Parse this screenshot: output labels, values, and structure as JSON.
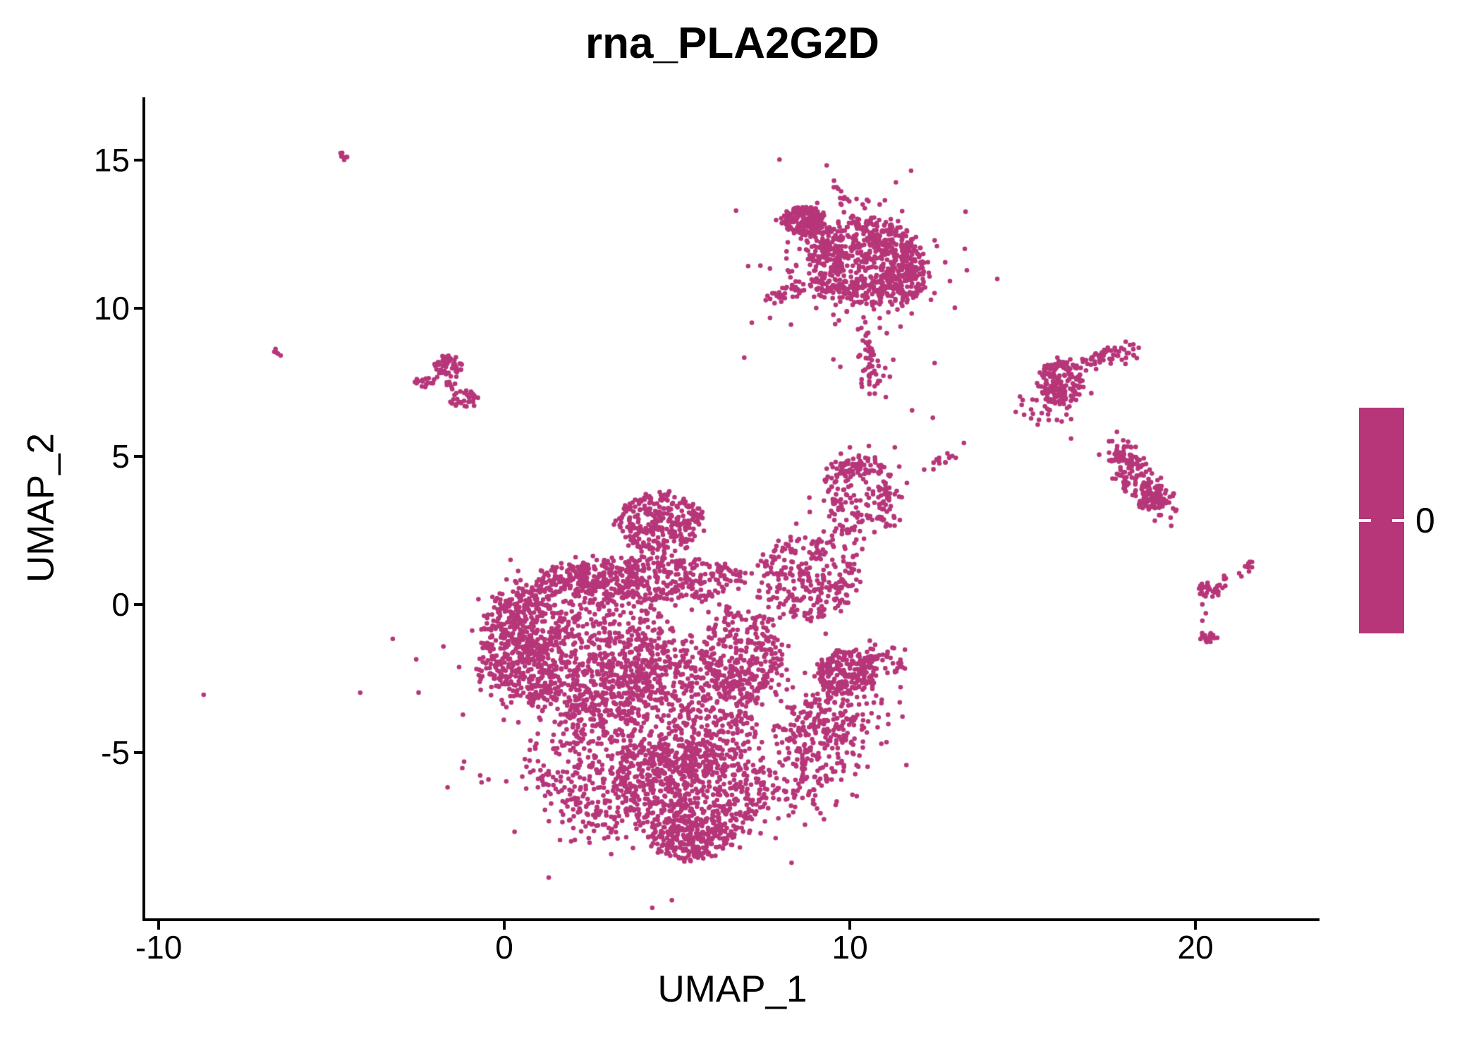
{
  "title": "rna_PLA2G2D",
  "legend": {
    "tick_label": "0",
    "bar_color": "#B63679"
  },
  "chart_data": {
    "type": "scatter",
    "title": "rna_PLA2G2D",
    "xlabel": "UMAP_1",
    "ylabel": "UMAP_2",
    "xlim": [
      -10.39,
      23.59
    ],
    "ylim": [
      -10.6,
      17.12
    ],
    "x_ticks": {
      "values": [
        -10,
        0,
        10,
        20
      ],
      "labels": [
        "-10",
        "0",
        "10",
        "20"
      ]
    },
    "y_ticks": {
      "values": [
        15,
        10,
        5,
        0,
        -5
      ],
      "labels": [
        "15",
        "10",
        "5",
        "0",
        "-5"
      ]
    },
    "grid": false,
    "legend_position": "right",
    "point_color": "#B63679",
    "point_radius_px": 3.3,
    "colorbar": {
      "single_tick_value": 0,
      "uniform_color": "#B63679"
    },
    "seed": 1234567,
    "clusters": [
      {
        "name": "main-upper-left",
        "shape": "ellipse",
        "cx": 2.2,
        "cy": -1.2,
        "rx": 2.6,
        "ry": 2.6,
        "n": 700
      },
      {
        "name": "main-center",
        "shape": "ellipse",
        "cx": 4.5,
        "cy": -3.8,
        "rx": 2.8,
        "ry": 2.6,
        "n": 800
      },
      {
        "name": "main-bottom-bowl",
        "shape": "ellipse",
        "cx": 5.4,
        "cy": -6.3,
        "rx": 2.3,
        "ry": 1.7,
        "n": 600
      },
      {
        "name": "main-top-band",
        "shape": "ellipse",
        "cx": 4.2,
        "cy": 0.85,
        "rx": 2.8,
        "ry": 0.75,
        "n": 450
      },
      {
        "name": "main-top-knob",
        "shape": "ellipse",
        "cx": 4.5,
        "cy": 2.75,
        "rx": 1.25,
        "ry": 1.0,
        "n": 280
      },
      {
        "name": "main-left-lobe",
        "shape": "ellipse",
        "cx": 0.6,
        "cy": -1.6,
        "rx": 1.25,
        "ry": 1.9,
        "n": 300
      },
      {
        "name": "main-right-mid",
        "shape": "ellipse",
        "cx": 6.9,
        "cy": -1.8,
        "rx": 1.2,
        "ry": 1.6,
        "n": 280
      },
      {
        "name": "main-right-shoulder",
        "shape": "ellipse",
        "cx": 8.8,
        "cy": 0.9,
        "rx": 1.4,
        "ry": 1.4,
        "n": 260
      },
      {
        "name": "main-right-edge-band",
        "shape": "stroke",
        "x1": 8.4,
        "y1": -6.7,
        "x2": 10.3,
        "y2": -3.3,
        "w": 0.55,
        "n": 200
      },
      {
        "name": "main-bottom-tip",
        "shape": "ellipse",
        "cx": 5.4,
        "cy": -7.9,
        "rx": 1.2,
        "ry": 0.75,
        "n": 220
      },
      {
        "name": "main-fill",
        "shape": "gauss",
        "cx": 4.0,
        "cy": -3.5,
        "sx": 2.6,
        "sy": 2.3,
        "n": 400
      },
      {
        "name": "main-left-edge-band",
        "shape": "stroke",
        "x1": -0.5,
        "y1": -2.6,
        "x2": 0.9,
        "y2": 0.6,
        "w": 0.45,
        "n": 120
      },
      {
        "name": "main-bottom-left-edge",
        "shape": "stroke",
        "x1": 1.1,
        "y1": -5.3,
        "x2": 3.0,
        "y2": -7.6,
        "w": 0.5,
        "n": 150
      },
      {
        "name": "satellite-body",
        "shape": "ellipse",
        "cx": 9.9,
        "cy": -2.3,
        "rx": 0.85,
        "ry": 0.75,
        "n": 200
      },
      {
        "name": "satellite-arm",
        "shape": "stroke",
        "x1": 10.4,
        "y1": -1.7,
        "x2": 11.5,
        "y2": -2.1,
        "w": 0.22,
        "n": 50
      },
      {
        "name": "satellite-connector",
        "shape": "stroke",
        "x1": 9.4,
        "y1": -3.1,
        "x2": 8.3,
        "y2": -5.2,
        "w": 0.45,
        "n": 130
      },
      {
        "name": "top-body",
        "shape": "ellipse",
        "cx": 10.35,
        "cy": 11.6,
        "rx": 1.6,
        "ry": 1.5,
        "n": 620
      },
      {
        "name": "top-left-lobe",
        "shape": "ellipse",
        "cx": 8.65,
        "cy": 12.95,
        "rx": 0.62,
        "ry": 0.5,
        "n": 170
      },
      {
        "name": "top-right-edge",
        "shape": "ellipse",
        "cx": 11.7,
        "cy": 11.2,
        "rx": 0.55,
        "ry": 1.0,
        "n": 120
      },
      {
        "name": "top-antenna",
        "shape": "stroke",
        "x1": 9.62,
        "y1": 14.15,
        "x2": 9.85,
        "y2": 13.5,
        "w": 0.12,
        "n": 12
      },
      {
        "name": "top-left-streak",
        "shape": "stroke",
        "x1": 7.72,
        "y1": 10.35,
        "x2": 8.8,
        "y2": 10.8,
        "w": 0.1,
        "n": 30
      },
      {
        "name": "top-tail",
        "shape": "stroke",
        "x1": 10.45,
        "y1": 9.1,
        "x2": 10.72,
        "y2": 7.1,
        "w": 0.18,
        "n": 50
      },
      {
        "name": "top-fringe",
        "shape": "gauss",
        "cx": 10.3,
        "cy": 11.3,
        "sx": 1.35,
        "sy": 1.35,
        "n": 150
      },
      {
        "name": "leftsmall-top",
        "shape": "ellipse",
        "cx": -1.62,
        "cy": 8.05,
        "rx": 0.42,
        "ry": 0.35,
        "n": 50
      },
      {
        "name": "leftsmall-arm",
        "shape": "ellipse",
        "cx": -2.3,
        "cy": 7.5,
        "rx": 0.3,
        "ry": 0.18,
        "n": 16
      },
      {
        "name": "leftsmall-bottom",
        "shape": "ellipse",
        "cx": -1.15,
        "cy": 6.95,
        "rx": 0.45,
        "ry": 0.28,
        "n": 34
      },
      {
        "name": "leftsmall-bridge",
        "shape": "stroke",
        "x1": -1.9,
        "y1": 7.7,
        "x2": -1.4,
        "y2": 7.35,
        "w": 0.12,
        "n": 8
      },
      {
        "name": "right1-body",
        "shape": "ellipse",
        "cx": 16.1,
        "cy": 7.5,
        "rx": 0.65,
        "ry": 0.75,
        "n": 190
      },
      {
        "name": "right1-arm",
        "shape": "stroke",
        "x1": 16.75,
        "y1": 8.15,
        "x2": 18.25,
        "y2": 8.6,
        "w": 0.14,
        "n": 55
      },
      {
        "name": "right1-sparse",
        "shape": "gauss",
        "cx": 15.6,
        "cy": 6.6,
        "sx": 0.45,
        "sy": 0.4,
        "n": 30
      },
      {
        "name": "right2-upper",
        "shape": "stroke",
        "x1": 17.6,
        "y1": 5.3,
        "x2": 18.35,
        "y2": 4.5,
        "w": 0.28,
        "n": 80
      },
      {
        "name": "right2-lower",
        "shape": "stroke",
        "x1": 18.05,
        "y1": 4.35,
        "x2": 19.15,
        "y2": 3.35,
        "w": 0.3,
        "n": 110
      },
      {
        "name": "right2-blob",
        "shape": "ellipse",
        "cx": 18.75,
        "cy": 3.5,
        "rx": 0.4,
        "ry": 0.3,
        "n": 40
      },
      {
        "name": "br-slash",
        "shape": "stroke",
        "x1": 21.3,
        "y1": 1.0,
        "x2": 21.75,
        "y2": 1.55,
        "w": 0.09,
        "n": 12
      },
      {
        "name": "br-y-body",
        "shape": "ellipse",
        "cx": 20.45,
        "cy": 0.5,
        "rx": 0.35,
        "ry": 0.3,
        "n": 30
      },
      {
        "name": "br-y-arm",
        "shape": "stroke",
        "x1": 20.7,
        "y1": 0.8,
        "x2": 21.0,
        "y2": 1.05,
        "w": 0.09,
        "n": 6
      },
      {
        "name": "br-bottom",
        "shape": "ellipse",
        "cx": 20.4,
        "cy": -1.1,
        "rx": 0.25,
        "ry": 0.22,
        "n": 16
      },
      {
        "name": "arc-left",
        "shape": "stroke",
        "x1": 9.5,
        "y1": 4.35,
        "x2": 9.62,
        "y2": 3.2,
        "w": 0.14,
        "n": 35
      },
      {
        "name": "arc-top",
        "shape": "stroke",
        "x1": 9.55,
        "y1": 4.55,
        "x2": 10.9,
        "y2": 4.75,
        "w": 0.2,
        "n": 70
      },
      {
        "name": "arc-right",
        "shape": "stroke",
        "x1": 10.95,
        "y1": 4.5,
        "x2": 11.1,
        "y2": 2.55,
        "w": 0.18,
        "n": 60
      },
      {
        "name": "arc-inner",
        "shape": "gauss",
        "cx": 10.2,
        "cy": 3.5,
        "sx": 0.5,
        "sy": 0.55,
        "n": 45
      },
      {
        "name": "arc-bottom-connector",
        "shape": "gauss",
        "cx": 9.9,
        "cy": 2.5,
        "sx": 0.45,
        "sy": 0.4,
        "n": 35
      },
      {
        "name": "arc-trail",
        "shape": "stroke",
        "x1": 12.4,
        "y1": 4.65,
        "x2": 13.0,
        "y2": 5.05,
        "w": 0.09,
        "n": 14
      },
      {
        "name": "tiny-topleft-streak",
        "shape": "stroke",
        "x1": -4.7,
        "y1": 15.2,
        "x2": -4.45,
        "y2": 14.95,
        "w": 0.06,
        "n": 7
      },
      {
        "name": "tiny-left-dash",
        "shape": "stroke",
        "x1": -6.65,
        "y1": 8.65,
        "x2": -6.45,
        "y2": 8.4,
        "w": 0.06,
        "n": 5
      },
      {
        "name": "isolated-singles",
        "shape": "points",
        "pts": [
          [
            -8.7,
            -3.05
          ],
          [
            16.4,
            5.6
          ],
          [
            15.0,
            6.9
          ],
          [
            14.8,
            6.5
          ],
          [
            19.3,
            2.65
          ],
          [
            20.2,
            0.0
          ],
          [
            20.3,
            -0.3
          ],
          [
            20.2,
            -0.55
          ],
          [
            11.65,
            4.1
          ],
          [
            12.15,
            4.55
          ],
          [
            11.3,
            5.3
          ],
          [
            10.0,
            5.3
          ],
          [
            10.55,
            5.35
          ],
          [
            11.8,
            6.55
          ],
          [
            12.4,
            6.3
          ],
          [
            13.3,
            5.45
          ]
        ]
      }
    ]
  }
}
